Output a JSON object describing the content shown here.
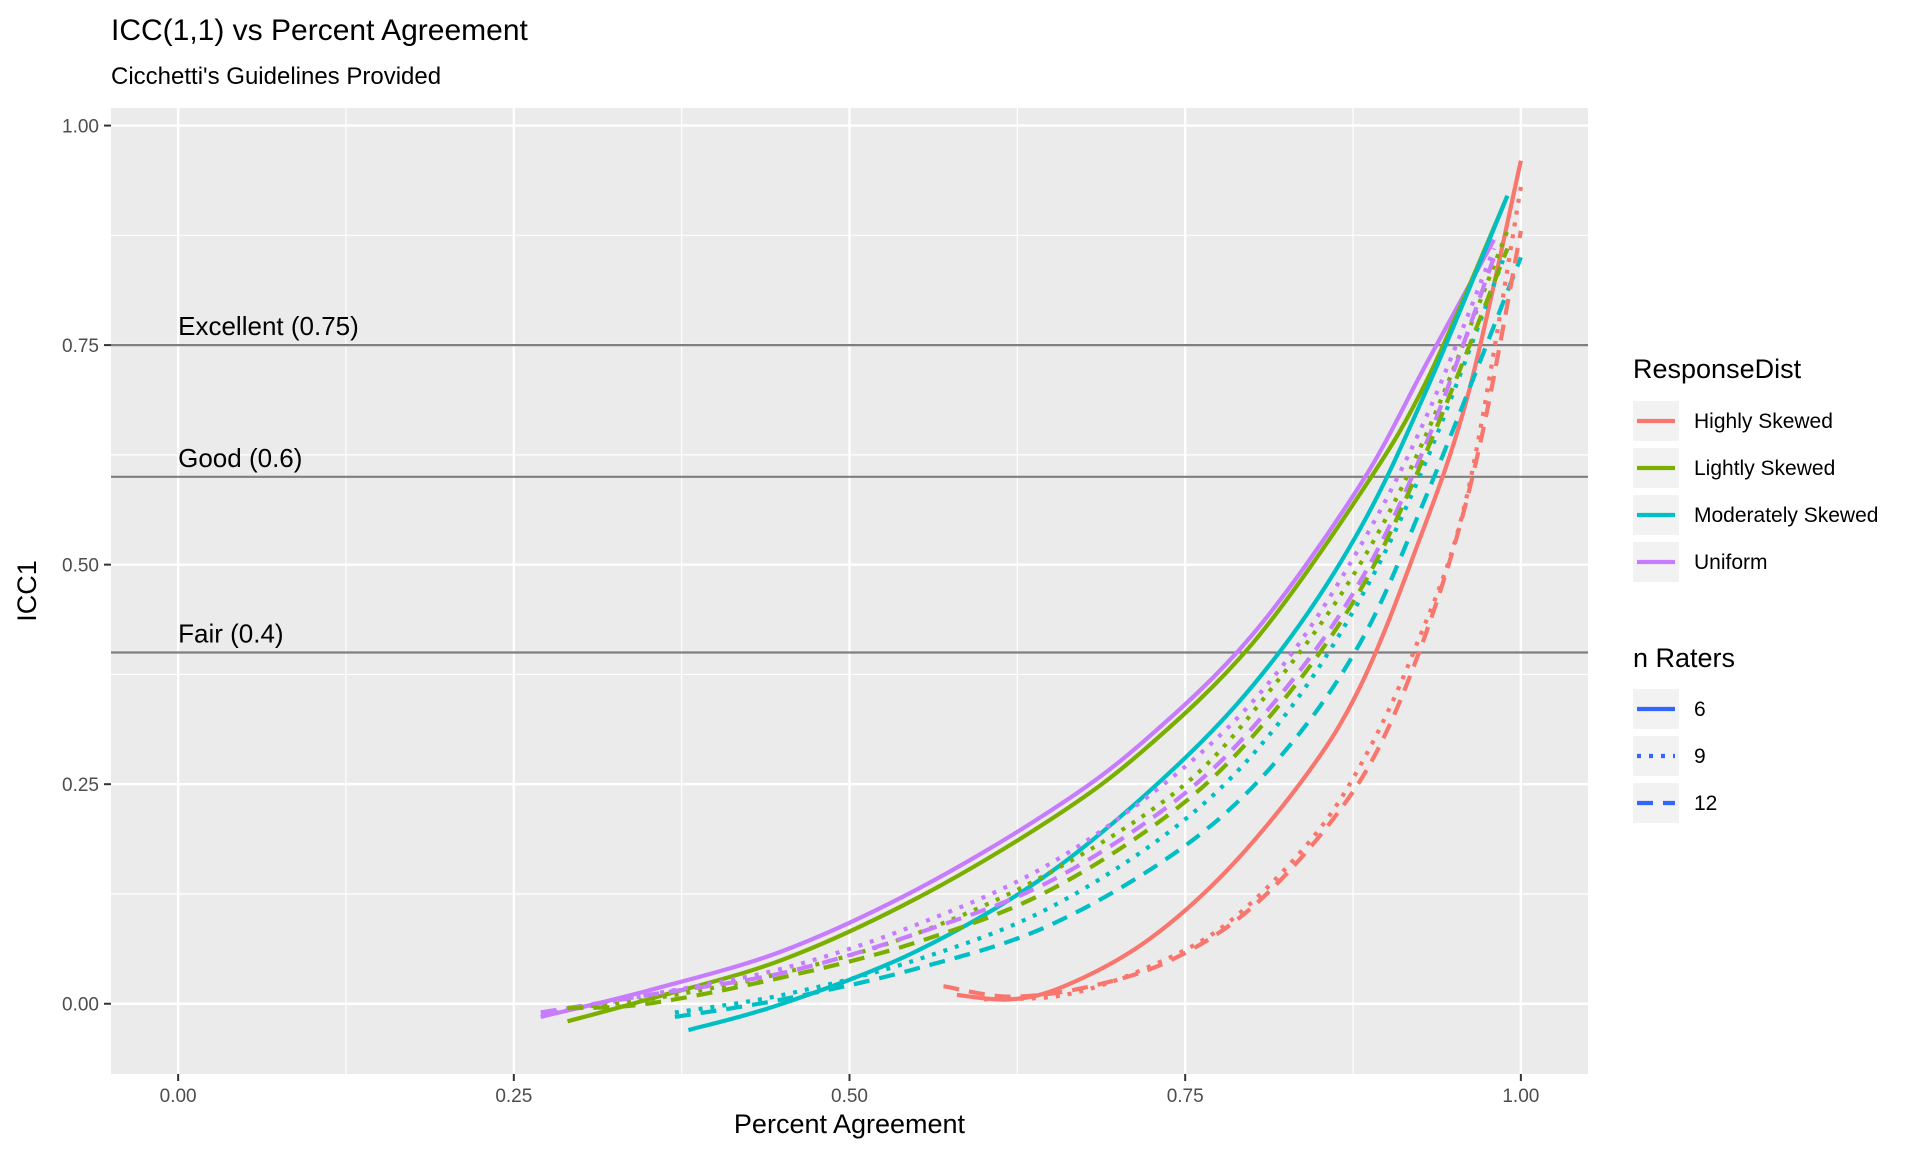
{
  "chart_data": {
    "type": "line",
    "title": "ICC(1,1) vs Percent Agreement",
    "subtitle": "Cicchetti's Guidelines Provided",
    "xlabel": "Percent Agreement",
    "ylabel": "ICC1",
    "xlim": [
      -0.05,
      1.05
    ],
    "ylim": [
      -0.08,
      1.02
    ],
    "x_ticks": [
      0,
      0.25,
      0.5,
      0.75,
      1
    ],
    "x_tick_labels": [
      "0.00",
      "0.25",
      "0.50",
      "0.75",
      "1.00"
    ],
    "y_ticks": [
      0,
      0.25,
      0.5,
      0.75,
      1
    ],
    "y_tick_labels": [
      "0.00",
      "0.25",
      "0.50",
      "0.75",
      "1.00"
    ],
    "grid": true,
    "reference_lines": [
      {
        "y": 0.75,
        "label": "Excellent (0.75)"
      },
      {
        "y": 0.6,
        "label": "Good (0.6)"
      },
      {
        "y": 0.4,
        "label": "Fair (0.4)"
      }
    ],
    "legend_position": "right",
    "legend_color": {
      "title": "ResponseDist",
      "items": [
        {
          "label": "Highly Skewed",
          "color": "#F8766D"
        },
        {
          "label": "Lightly Skewed",
          "color": "#7CAE00"
        },
        {
          "label": "Moderately Skewed",
          "color": "#00BFC4"
        },
        {
          "label": "Uniform",
          "color": "#C77CFF"
        }
      ]
    },
    "legend_linetype": {
      "title": "n Raters",
      "color": "#3366FF",
      "items": [
        {
          "label": "6",
          "linetype": "solid"
        },
        {
          "label": "9",
          "linetype": "dotted"
        },
        {
          "label": "12",
          "linetype": "dashed"
        }
      ]
    },
    "series": [
      {
        "dist": "Uniform",
        "raters": "6",
        "color": "#C77CFF",
        "linetype": "solid",
        "points": [
          [
            0.27,
            -0.015
          ],
          [
            0.35,
            0.015
          ],
          [
            0.45,
            0.06
          ],
          [
            0.55,
            0.13
          ],
          [
            0.65,
            0.22
          ],
          [
            0.72,
            0.3
          ],
          [
            0.8,
            0.42
          ],
          [
            0.88,
            0.59
          ],
          [
            0.93,
            0.73
          ],
          [
            0.98,
            0.87
          ]
        ]
      },
      {
        "dist": "Lightly Skewed",
        "raters": "6",
        "color": "#7CAE00",
        "linetype": "solid",
        "points": [
          [
            0.29,
            -0.02
          ],
          [
            0.35,
            0.005
          ],
          [
            0.45,
            0.05
          ],
          [
            0.55,
            0.12
          ],
          [
            0.65,
            0.21
          ],
          [
            0.72,
            0.29
          ],
          [
            0.8,
            0.41
          ],
          [
            0.88,
            0.58
          ],
          [
            0.93,
            0.71
          ],
          [
            0.99,
            0.92
          ]
        ]
      },
      {
        "dist": "Moderately Skewed",
        "raters": "6",
        "color": "#00BFC4",
        "linetype": "solid",
        "points": [
          [
            0.38,
            -0.03
          ],
          [
            0.45,
            0.0
          ],
          [
            0.55,
            0.06
          ],
          [
            0.65,
            0.15
          ],
          [
            0.75,
            0.28
          ],
          [
            0.82,
            0.4
          ],
          [
            0.88,
            0.54
          ],
          [
            0.93,
            0.7
          ],
          [
            0.99,
            0.92
          ]
        ]
      },
      {
        "dist": "Highly Skewed",
        "raters": "6",
        "color": "#F8766D",
        "linetype": "solid",
        "points": [
          [
            0.58,
            0.01
          ],
          [
            0.62,
            0.005
          ],
          [
            0.66,
            0.02
          ],
          [
            0.72,
            0.07
          ],
          [
            0.78,
            0.15
          ],
          [
            0.84,
            0.26
          ],
          [
            0.88,
            0.36
          ],
          [
            0.92,
            0.51
          ],
          [
            0.96,
            0.69
          ],
          [
            1.0,
            0.96
          ]
        ]
      },
      {
        "dist": "Uniform",
        "raters": "9",
        "color": "#C77CFF",
        "linetype": "dotted",
        "points": [
          [
            0.28,
            -0.01
          ],
          [
            0.35,
            0.01
          ],
          [
            0.45,
            0.04
          ],
          [
            0.55,
            0.09
          ],
          [
            0.65,
            0.16
          ],
          [
            0.75,
            0.27
          ],
          [
            0.82,
            0.38
          ],
          [
            0.88,
            0.52
          ],
          [
            0.93,
            0.67
          ],
          [
            0.98,
            0.86
          ]
        ]
      },
      {
        "dist": "Lightly Skewed",
        "raters": "9",
        "color": "#7CAE00",
        "linetype": "dotted",
        "points": [
          [
            0.29,
            -0.005
          ],
          [
            0.35,
            0.005
          ],
          [
            0.45,
            0.035
          ],
          [
            0.55,
            0.08
          ],
          [
            0.65,
            0.15
          ],
          [
            0.75,
            0.25
          ],
          [
            0.82,
            0.37
          ],
          [
            0.88,
            0.5
          ],
          [
            0.93,
            0.65
          ],
          [
            0.99,
            0.88
          ]
        ]
      },
      {
        "dist": "Moderately Skewed",
        "raters": "9",
        "color": "#00BFC4",
        "linetype": "dotted",
        "points": [
          [
            0.37,
            -0.01
          ],
          [
            0.45,
            0.01
          ],
          [
            0.55,
            0.05
          ],
          [
            0.65,
            0.11
          ],
          [
            0.75,
            0.21
          ],
          [
            0.82,
            0.32
          ],
          [
            0.88,
            0.46
          ],
          [
            0.93,
            0.62
          ],
          [
            0.99,
            0.86
          ]
        ]
      },
      {
        "dist": "Highly Skewed",
        "raters": "9",
        "color": "#F8766D",
        "linetype": "dotted",
        "points": [
          [
            0.6,
            0.005
          ],
          [
            0.66,
            0.01
          ],
          [
            0.72,
            0.04
          ],
          [
            0.78,
            0.09
          ],
          [
            0.84,
            0.18
          ],
          [
            0.88,
            0.27
          ],
          [
            0.92,
            0.4
          ],
          [
            0.96,
            0.58
          ],
          [
            1.0,
            0.93
          ]
        ]
      },
      {
        "dist": "Uniform",
        "raters": "12",
        "color": "#C77CFF",
        "linetype": "dashed",
        "points": [
          [
            0.27,
            -0.01
          ],
          [
            0.35,
            0.01
          ],
          [
            0.45,
            0.035
          ],
          [
            0.55,
            0.08
          ],
          [
            0.65,
            0.14
          ],
          [
            0.75,
            0.24
          ],
          [
            0.82,
            0.35
          ],
          [
            0.88,
            0.48
          ],
          [
            0.93,
            0.64
          ],
          [
            0.98,
            0.85
          ]
        ]
      },
      {
        "dist": "Lightly Skewed",
        "raters": "12",
        "color": "#7CAE00",
        "linetype": "dashed",
        "points": [
          [
            0.29,
            -0.005
          ],
          [
            0.35,
            0.0
          ],
          [
            0.45,
            0.03
          ],
          [
            0.55,
            0.07
          ],
          [
            0.65,
            0.13
          ],
          [
            0.75,
            0.23
          ],
          [
            0.82,
            0.34
          ],
          [
            0.88,
            0.47
          ],
          [
            0.93,
            0.63
          ],
          [
            0.99,
            0.86
          ]
        ]
      },
      {
        "dist": "Moderately Skewed",
        "raters": "12",
        "color": "#00BFC4",
        "linetype": "dashed",
        "points": [
          [
            0.37,
            -0.015
          ],
          [
            0.45,
            0.005
          ],
          [
            0.55,
            0.04
          ],
          [
            0.65,
            0.09
          ],
          [
            0.75,
            0.18
          ],
          [
            0.82,
            0.28
          ],
          [
            0.88,
            0.41
          ],
          [
            0.93,
            0.58
          ],
          [
            1.0,
            0.85
          ]
        ]
      },
      {
        "dist": "Highly Skewed",
        "raters": "12",
        "color": "#F8766D",
        "linetype": "dashed",
        "points": [
          [
            0.57,
            0.02
          ],
          [
            0.62,
            0.008
          ],
          [
            0.68,
            0.02
          ],
          [
            0.74,
            0.05
          ],
          [
            0.8,
            0.11
          ],
          [
            0.86,
            0.21
          ],
          [
            0.9,
            0.31
          ],
          [
            0.94,
            0.47
          ],
          [
            0.97,
            0.64
          ],
          [
            1.0,
            0.88
          ]
        ]
      }
    ]
  }
}
